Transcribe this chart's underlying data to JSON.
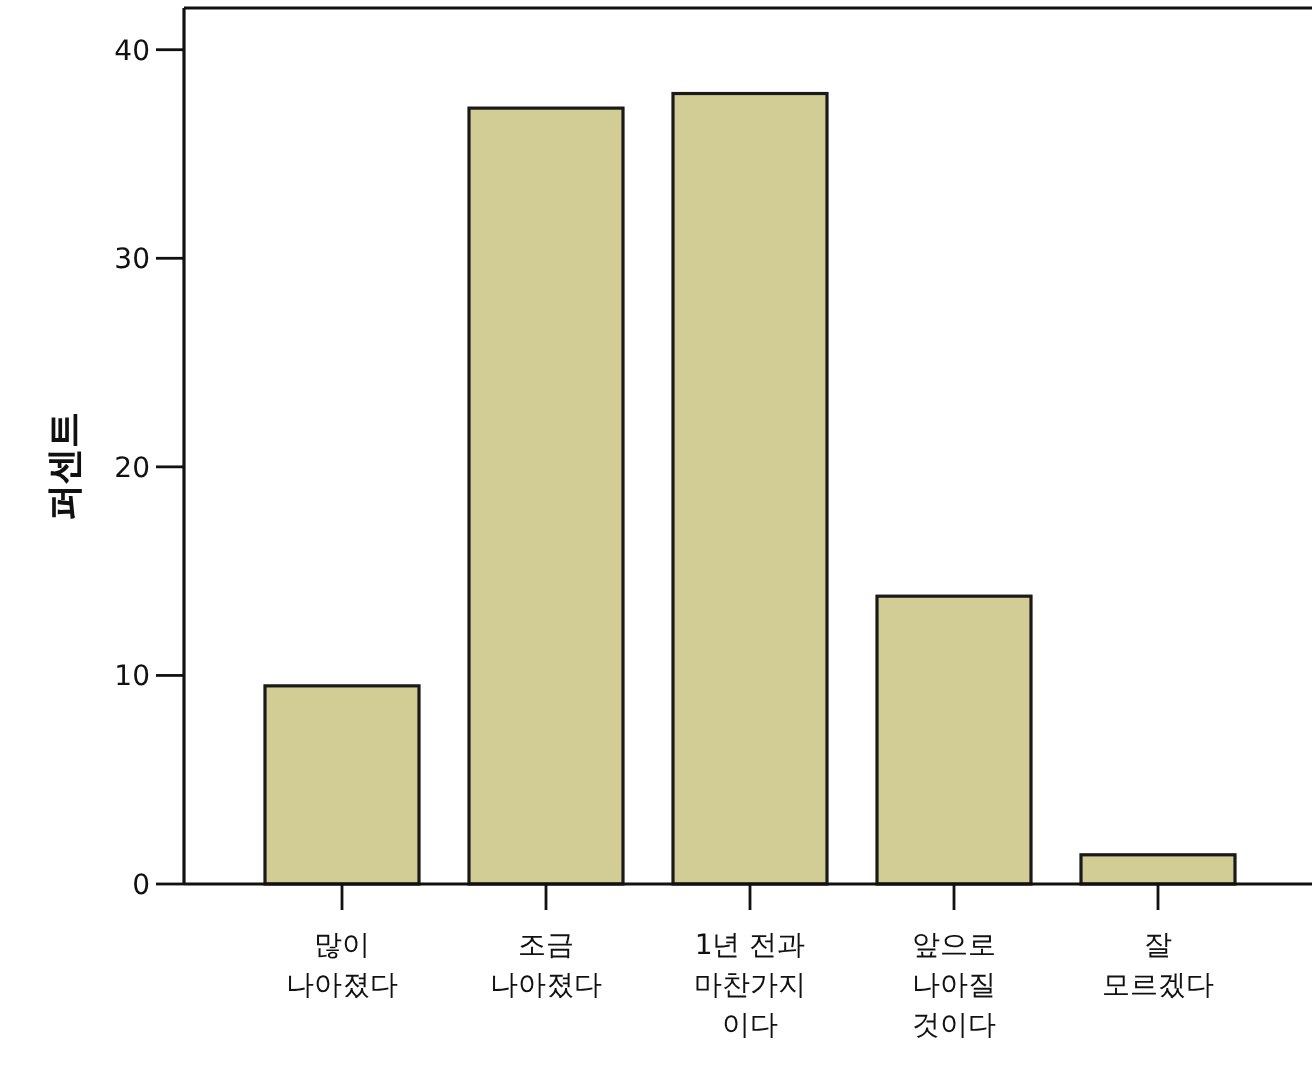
{
  "chart_data": {
    "type": "bar",
    "ylabel": "퍼센트",
    "categories": [
      "많이\n나아졌다",
      "조금\n나아졌다",
      "1년 전과\n마찬가지\n이다",
      "앞으로\n나아질\n것이다",
      "잘\n모르겠다"
    ],
    "values": [
      9.5,
      37.2,
      37.9,
      13.8,
      1.4
    ],
    "color": "#d2cc95",
    "ylim": [
      0,
      42
    ],
    "yticks": [
      0,
      10,
      20,
      30,
      40
    ],
    "grid": false
  }
}
